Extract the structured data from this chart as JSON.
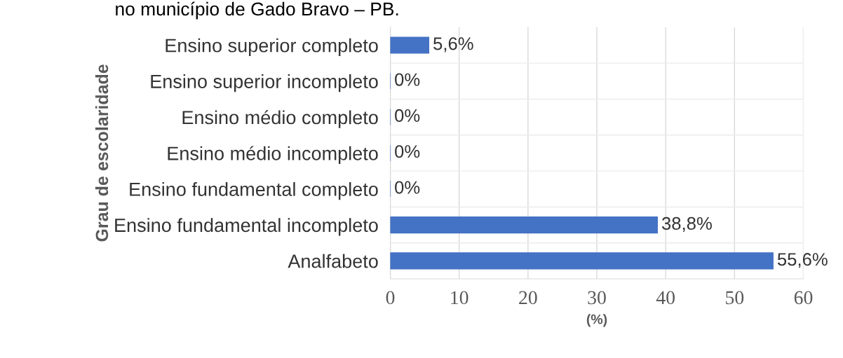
{
  "chart_data": {
    "type": "bar",
    "orientation": "horizontal",
    "categories": [
      "Ensino superior completo",
      "Ensino superior incompleto",
      "Ensino médio completo",
      "Ensino médio incompleto",
      "Ensino fundamental completo",
      "Ensino fundamental incompleto",
      "Analfabeto"
    ],
    "values": [
      5.6,
      0,
      0,
      0,
      0,
      38.8,
      55.6
    ],
    "value_labels": [
      "5,6%",
      "0%",
      "0%",
      "0%",
      "0%",
      "38,8%",
      "55,6%"
    ],
    "color": "#4472c4",
    "xlim": [
      0,
      60
    ],
    "xticks": [
      0,
      10,
      20,
      30,
      40,
      50,
      60
    ],
    "xlabel": "(%)",
    "ylabel": "Grau de escolaridade",
    "annotations": [
      "no município de Gado Bravo – PB."
    ],
    "grid": true
  }
}
